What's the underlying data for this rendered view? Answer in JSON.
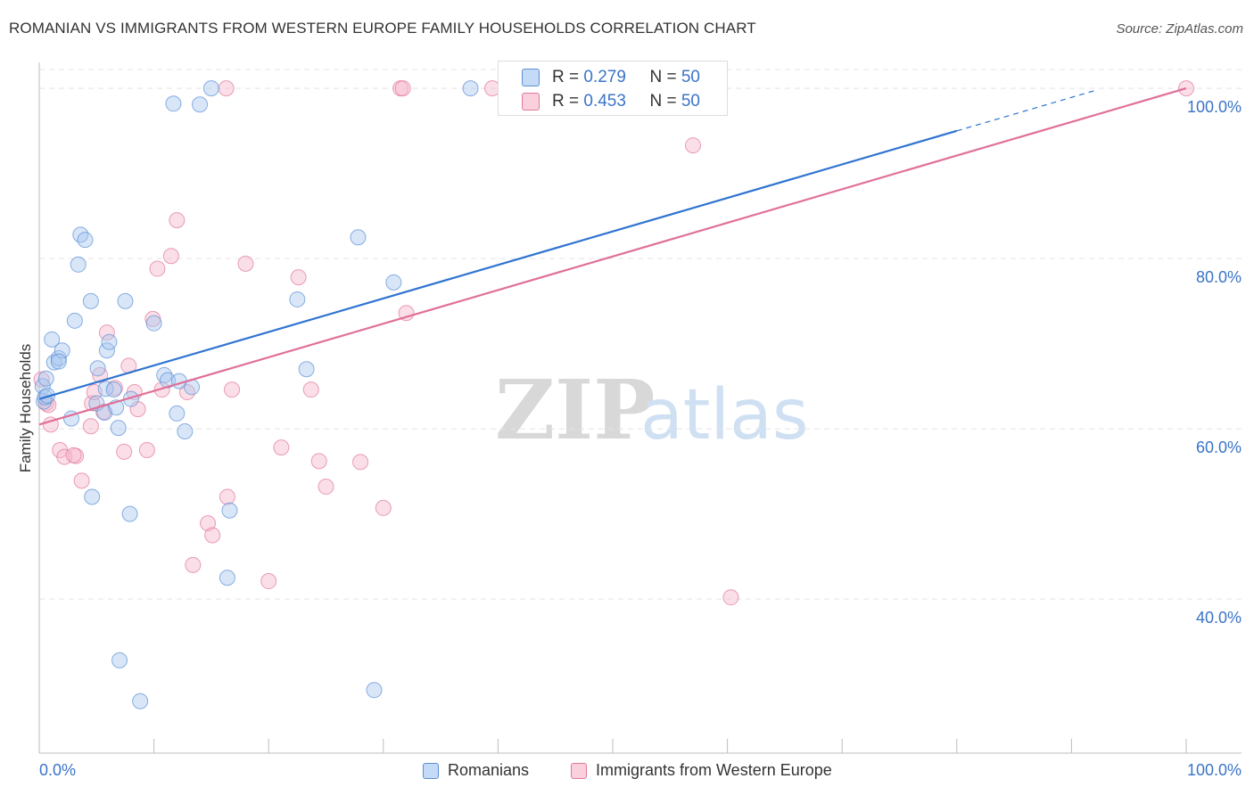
{
  "title": "ROMANIAN VS IMMIGRANTS FROM WESTERN EUROPE FAMILY HOUSEHOLDS CORRELATION CHART",
  "source": "Source: ZipAtlas.com",
  "watermark": {
    "zip": "ZIP",
    "atlas": "atlas"
  },
  "stats": [
    {
      "r_label": "R = ",
      "r_value": "0.279",
      "n_label": "N = ",
      "n_value": "50"
    },
    {
      "r_label": "R = ",
      "r_value": "0.453",
      "n_label": "N = ",
      "n_value": "50"
    }
  ],
  "colors": {
    "blue_fill": "#a8c8f0",
    "blue_stroke": "#5b8fd6",
    "blue_line": "#2f74d0",
    "pink_fill": "#f6b8cc",
    "pink_stroke": "#e07898",
    "pink_line": "#e0709a",
    "tick_label": "#3a74c8",
    "grid": "#e4e4e4"
  },
  "chart_data": {
    "type": "scatter",
    "xlabel": "",
    "ylabel": "Family Households",
    "xlim": [
      0,
      100
    ],
    "ylim": [
      22,
      102
    ],
    "x_tick_labels": [
      "0.0%",
      "100.0%"
    ],
    "y_ticks": [
      40,
      60,
      80,
      100
    ],
    "y_tick_labels": [
      "40.0%",
      "60.0%",
      "80.0%",
      "100.0%"
    ],
    "grid": true,
    "legend": "bottom-center",
    "series": [
      {
        "name": "Romanians",
        "color": "#5b8fd6",
        "trend": {
          "x0": 0,
          "y0": 63.5,
          "x1": 80,
          "y1": 95.0,
          "dashed_to_x": 92
        },
        "points": [
          [
            0.3,
            65.0
          ],
          [
            0.4,
            63.2
          ],
          [
            0.5,
            63.7
          ],
          [
            0.6,
            65.9
          ],
          [
            1.1,
            70.5
          ],
          [
            1.3,
            67.8
          ],
          [
            1.7,
            68.3
          ],
          [
            2.0,
            69.2
          ],
          [
            2.8,
            61.2
          ],
          [
            3.1,
            72.7
          ],
          [
            3.4,
            79.3
          ],
          [
            3.6,
            82.8
          ],
          [
            4.0,
            82.2
          ],
          [
            4.5,
            75.0
          ],
          [
            5.0,
            63.0
          ],
          [
            5.1,
            67.1
          ],
          [
            5.7,
            61.9
          ],
          [
            5.8,
            64.7
          ],
          [
            5.9,
            69.2
          ],
          [
            6.1,
            70.2
          ],
          [
            6.5,
            64.6
          ],
          [
            6.7,
            62.5
          ],
          [
            6.9,
            60.1
          ],
          [
            7.5,
            75.0
          ],
          [
            7.9,
            50.0
          ],
          [
            8.0,
            63.5
          ],
          [
            10.0,
            72.4
          ],
          [
            10.9,
            66.3
          ],
          [
            11.2,
            65.7
          ],
          [
            11.7,
            98.2
          ],
          [
            12.0,
            61.8
          ],
          [
            12.2,
            65.6
          ],
          [
            12.7,
            59.7
          ],
          [
            13.3,
            64.9
          ],
          [
            14.0,
            98.1
          ],
          [
            15.0,
            100.0
          ],
          [
            16.4,
            42.5
          ],
          [
            16.6,
            50.4
          ],
          [
            22.5,
            75.2
          ],
          [
            23.3,
            67.0
          ],
          [
            27.8,
            82.5
          ],
          [
            30.9,
            77.2
          ],
          [
            37.6,
            100.0
          ],
          [
            59.2,
            100.0
          ],
          [
            8.8,
            28.0
          ],
          [
            7.0,
            32.8
          ],
          [
            29.2,
            29.3
          ],
          [
            4.6,
            52.0
          ],
          [
            1.7,
            67.9
          ],
          [
            0.7,
            63.9
          ]
        ]
      },
      {
        "name": "Immigrants from Western Europe",
        "color": "#e07898",
        "trend": {
          "x0": 0,
          "y0": 60.5,
          "x1": 100,
          "y1": 100.0
        },
        "points": [
          [
            0.2,
            65.8
          ],
          [
            0.6,
            63.0
          ],
          [
            1.0,
            60.5
          ],
          [
            1.8,
            57.5
          ],
          [
            2.2,
            56.7
          ],
          [
            3.2,
            56.8
          ],
          [
            3.7,
            53.9
          ],
          [
            4.5,
            60.3
          ],
          [
            4.6,
            63.0
          ],
          [
            4.8,
            64.3
          ],
          [
            5.3,
            66.3
          ],
          [
            5.6,
            62.0
          ],
          [
            5.9,
            71.3
          ],
          [
            6.6,
            64.8
          ],
          [
            7.4,
            57.3
          ],
          [
            7.8,
            67.4
          ],
          [
            8.3,
            64.3
          ],
          [
            8.6,
            62.3
          ],
          [
            9.4,
            57.5
          ],
          [
            9.9,
            72.9
          ],
          [
            10.3,
            78.8
          ],
          [
            10.7,
            64.6
          ],
          [
            11.5,
            80.3
          ],
          [
            12.0,
            84.5
          ],
          [
            12.9,
            64.3
          ],
          [
            13.4,
            44.0
          ],
          [
            14.7,
            48.9
          ],
          [
            15.1,
            47.5
          ],
          [
            16.4,
            52.0
          ],
          [
            16.8,
            64.6
          ],
          [
            18.0,
            79.4
          ],
          [
            20.0,
            42.1
          ],
          [
            21.1,
            57.8
          ],
          [
            22.6,
            77.8
          ],
          [
            23.7,
            64.6
          ],
          [
            24.4,
            56.2
          ],
          [
            25.0,
            53.2
          ],
          [
            28.0,
            56.1
          ],
          [
            30.0,
            50.7
          ],
          [
            32.0,
            73.6
          ],
          [
            16.3,
            100.0
          ],
          [
            31.5,
            100.0
          ],
          [
            31.7,
            100.0
          ],
          [
            39.5,
            100.0
          ],
          [
            46.1,
            100.0
          ],
          [
            57.0,
            93.3
          ],
          [
            60.3,
            40.2
          ],
          [
            100.0,
            100.0
          ],
          [
            0.8,
            62.8
          ],
          [
            3.0,
            56.9
          ]
        ]
      }
    ]
  }
}
